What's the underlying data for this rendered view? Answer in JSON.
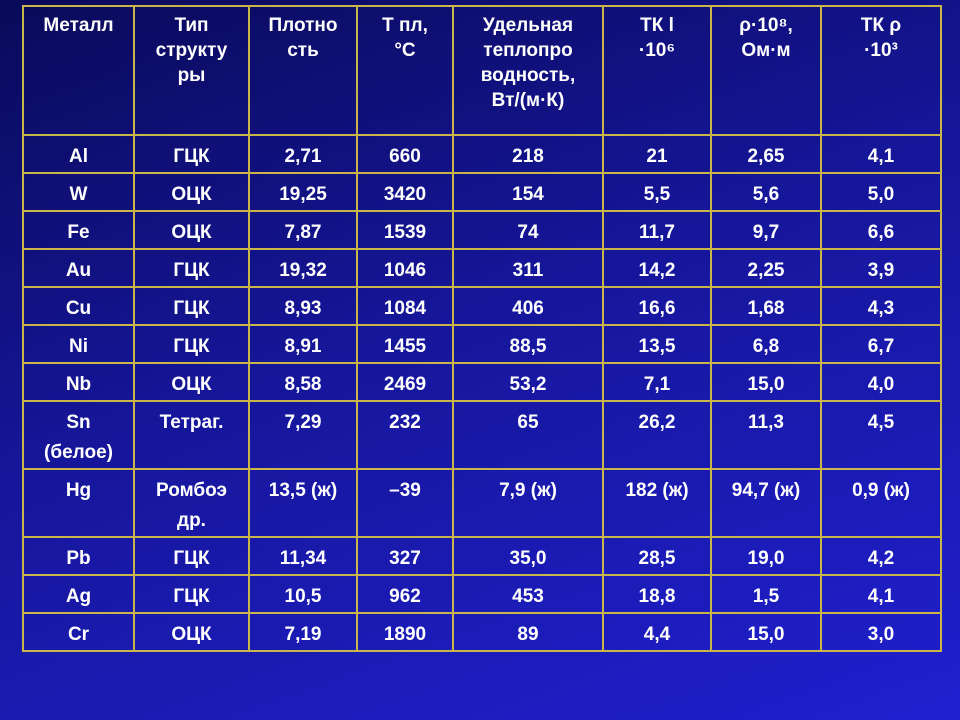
{
  "table": {
    "header": [
      [
        "Металл"
      ],
      [
        "Тип",
        "структу",
        "ры"
      ],
      [
        "Плотно",
        "сть"
      ],
      [
        "Т пл,",
        "°C"
      ],
      [
        "Удельная",
        "теплопро",
        "водность,",
        "Вт/(м·К)"
      ],
      [
        "ТК l",
        "·10⁶"
      ],
      [
        "ρ·10⁸,",
        "Ом·м"
      ],
      [
        "ТК ρ",
        "·10³"
      ]
    ],
    "rows": [
      [
        "Al",
        "ГЦК",
        "2,71",
        "660",
        "218",
        "21",
        "2,65",
        "4,1"
      ],
      [
        "W",
        "ОЦК",
        "19,25",
        "3420",
        "154",
        "5,5",
        "5,6",
        "5,0"
      ],
      [
        "Fe",
        "ОЦК",
        "7,87",
        "1539",
        "74",
        "11,7",
        "9,7",
        "6,6"
      ],
      [
        "Au",
        "ГЦК",
        "19,32",
        "1046",
        "311",
        "14,2",
        "2,25",
        "3,9"
      ],
      [
        "Cu",
        "ГЦК",
        "8,93",
        "1084",
        "406",
        "16,6",
        "1,68",
        "4,3"
      ],
      [
        "Ni",
        "ГЦК",
        "8,91",
        "1455",
        "88,5",
        "13,5",
        "6,8",
        "6,7"
      ],
      [
        "Nb",
        "ОЦК",
        "8,58",
        "2469",
        "53,2",
        "7,1",
        "15,0",
        "4,0"
      ],
      [
        [
          "Sn",
          "(белое)"
        ],
        "Тетраг.",
        "7,29",
        "232",
        "65",
        "26,2",
        "11,3",
        "4,5"
      ],
      [
        "Hg",
        [
          "Ромбоэ",
          "др."
        ],
        "13,5 (ж)",
        "–39",
        "7,9 (ж)",
        "182 (ж)",
        "94,7 (ж)",
        "0,9 (ж)"
      ],
      [
        "Pb",
        "ГЦК",
        "11,34",
        "327",
        "35,0",
        "28,5",
        "19,0",
        "4,2"
      ],
      [
        "Ag",
        "ГЦК",
        "10,5",
        "962",
        "453",
        "18,8",
        "1,5",
        "4,1"
      ],
      [
        "Cr",
        "ОЦК",
        "7,19",
        "1890",
        "89",
        "4,4",
        "15,0",
        "3,0"
      ]
    ]
  }
}
